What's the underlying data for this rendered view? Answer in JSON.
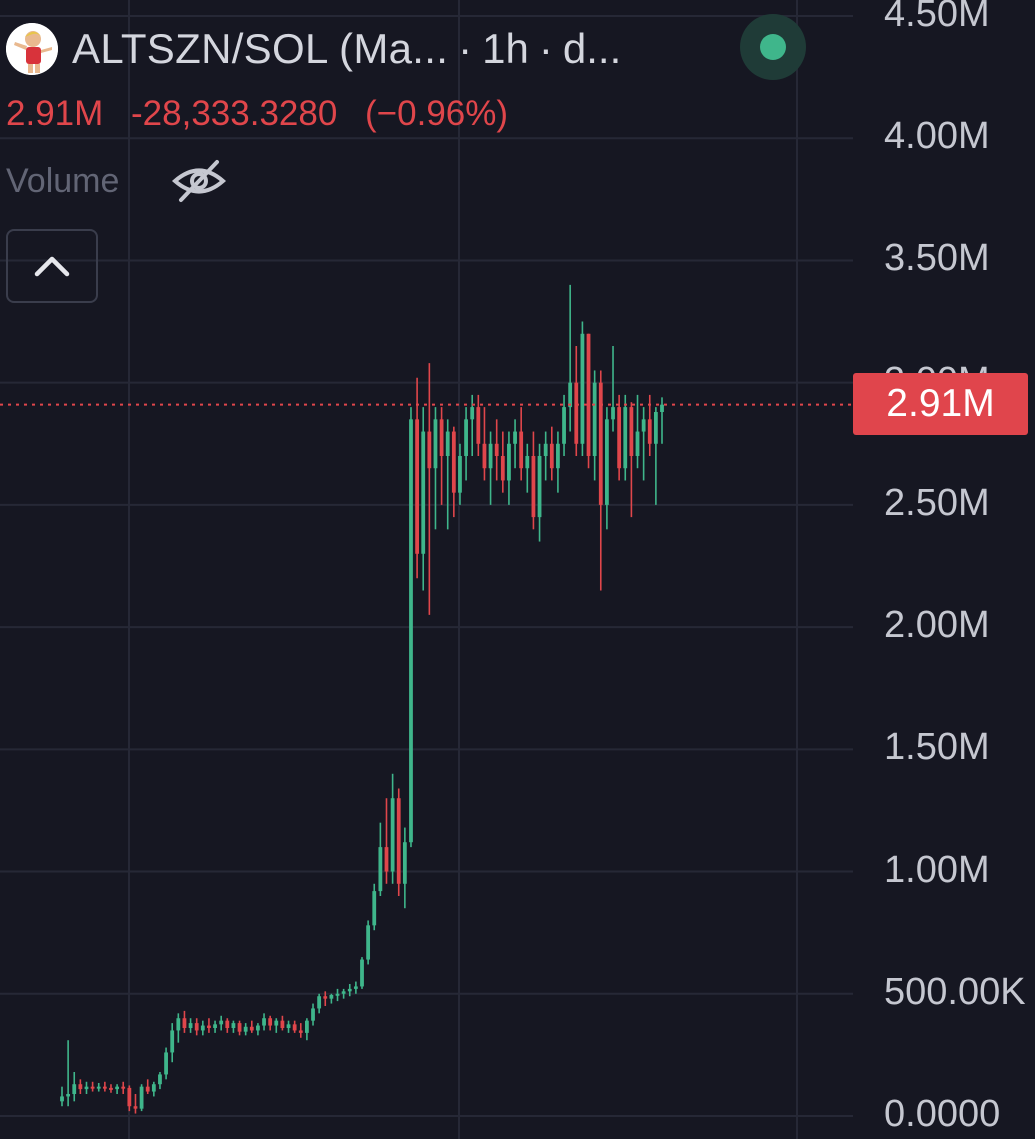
{
  "header": {
    "symbol": "ALTSZN/SOL (Ma...",
    "separator": "·",
    "interval": "1h",
    "exchange": "d...",
    "avatar_icon": "trader-avatar-icon",
    "status_icon": "market-open-dot-icon"
  },
  "price": {
    "last": "2.91M",
    "change": "-28,333.3280",
    "change_percent": "(−0.96%)"
  },
  "volume": {
    "label": "Volume",
    "hidden_icon": "eye-off-icon"
  },
  "collapse": {
    "icon": "chevron-up-icon"
  },
  "colors": {
    "background": "#161722",
    "grid": "#262836",
    "up": "#3fb68b",
    "down": "#e0464b",
    "axis_text": "#c5c7d0",
    "badge": "#e0454c"
  },
  "chart_data": {
    "type": "candlestick",
    "title": "ALTSZN/SOL",
    "interval": "1h",
    "last_price": 2910000,
    "last_price_label": "2.91M",
    "y_axis": {
      "side": "right",
      "ticks": [
        {
          "value": 4500000,
          "label": "4.50M"
        },
        {
          "value": 4000000,
          "label": "4.00M"
        },
        {
          "value": 3500000,
          "label": "3.50M"
        },
        {
          "value": 3000000,
          "label": "3.00M"
        },
        {
          "value": 2500000,
          "label": "2.50M"
        },
        {
          "value": 2000000,
          "label": "2.00M"
        },
        {
          "value": 1500000,
          "label": "1.50M"
        },
        {
          "value": 1000000,
          "label": "1.00M"
        },
        {
          "value": 500000,
          "label": "500.00K"
        },
        {
          "value": 0,
          "label": "0.0000"
        }
      ]
    },
    "ylim": [
      0,
      4500000
    ],
    "grid": true,
    "candles_ohlc": [
      [
        60000,
        120000,
        40000,
        80000
      ],
      [
        80000,
        310000,
        40000,
        90000
      ],
      [
        90000,
        180000,
        60000,
        130000
      ],
      [
        130000,
        150000,
        90000,
        110000
      ],
      [
        110000,
        140000,
        90000,
        120000
      ],
      [
        120000,
        140000,
        100000,
        115000
      ],
      [
        115000,
        135000,
        100000,
        120000
      ],
      [
        120000,
        140000,
        100000,
        115000
      ],
      [
        115000,
        130000,
        95000,
        110000
      ],
      [
        110000,
        130000,
        90000,
        120000
      ],
      [
        120000,
        140000,
        90000,
        115000
      ],
      [
        115000,
        125000,
        20000,
        40000
      ],
      [
        40000,
        90000,
        10000,
        30000
      ],
      [
        30000,
        130000,
        20000,
        120000
      ],
      [
        120000,
        150000,
        90000,
        100000
      ],
      [
        100000,
        140000,
        80000,
        130000
      ],
      [
        130000,
        180000,
        110000,
        170000
      ],
      [
        170000,
        280000,
        150000,
        260000
      ],
      [
        260000,
        380000,
        220000,
        350000
      ],
      [
        350000,
        420000,
        300000,
        400000
      ],
      [
        400000,
        430000,
        340000,
        360000
      ],
      [
        360000,
        400000,
        340000,
        380000
      ],
      [
        380000,
        400000,
        330000,
        350000
      ],
      [
        350000,
        390000,
        330000,
        370000
      ],
      [
        370000,
        400000,
        340000,
        360000
      ],
      [
        360000,
        390000,
        340000,
        375000
      ],
      [
        375000,
        410000,
        350000,
        390000
      ],
      [
        390000,
        400000,
        340000,
        360000
      ],
      [
        360000,
        390000,
        340000,
        380000
      ],
      [
        380000,
        390000,
        330000,
        345000
      ],
      [
        345000,
        380000,
        330000,
        365000
      ],
      [
        365000,
        390000,
        340000,
        350000
      ],
      [
        350000,
        380000,
        330000,
        370000
      ],
      [
        370000,
        420000,
        350000,
        400000
      ],
      [
        400000,
        410000,
        350000,
        370000
      ],
      [
        370000,
        400000,
        340000,
        390000
      ],
      [
        390000,
        410000,
        350000,
        360000
      ],
      [
        360000,
        390000,
        340000,
        375000
      ],
      [
        375000,
        390000,
        340000,
        350000
      ],
      [
        350000,
        380000,
        320000,
        340000
      ],
      [
        340000,
        400000,
        310000,
        390000
      ],
      [
        390000,
        460000,
        370000,
        440000
      ],
      [
        440000,
        500000,
        420000,
        490000
      ],
      [
        490000,
        510000,
        450000,
        480000
      ],
      [
        480000,
        500000,
        460000,
        495000
      ],
      [
        495000,
        520000,
        470000,
        500000
      ],
      [
        500000,
        520000,
        480000,
        510000
      ],
      [
        510000,
        540000,
        490000,
        520000
      ],
      [
        520000,
        550000,
        500000,
        530000
      ],
      [
        530000,
        650000,
        520000,
        640000
      ],
      [
        640000,
        800000,
        620000,
        780000
      ],
      [
        780000,
        950000,
        760000,
        920000
      ],
      [
        920000,
        1200000,
        900000,
        1100000
      ],
      [
        1100000,
        1300000,
        950000,
        1000000
      ],
      [
        1000000,
        1400000,
        950000,
        1300000
      ],
      [
        1300000,
        1340000,
        900000,
        950000
      ],
      [
        950000,
        1180000,
        850000,
        1120000
      ],
      [
        1120000,
        2900000,
        1100000,
        2850000
      ],
      [
        2850000,
        3020000,
        2200000,
        2300000
      ],
      [
        2300000,
        2900000,
        2150000,
        2800000
      ],
      [
        2800000,
        3080000,
        2050000,
        2650000
      ],
      [
        2650000,
        2900000,
        2400000,
        2850000
      ],
      [
        2850000,
        2900000,
        2500000,
        2700000
      ],
      [
        2700000,
        2850000,
        2400000,
        2800000
      ],
      [
        2800000,
        2820000,
        2450000,
        2550000
      ],
      [
        2550000,
        2750000,
        2500000,
        2700000
      ],
      [
        2700000,
        2900000,
        2600000,
        2850000
      ],
      [
        2850000,
        2950000,
        2700000,
        2900000
      ],
      [
        2900000,
        2950000,
        2700000,
        2750000
      ],
      [
        2750000,
        2900000,
        2600000,
        2650000
      ],
      [
        2650000,
        2800000,
        2500000,
        2750000
      ],
      [
        2750000,
        2850000,
        2600000,
        2700000
      ],
      [
        2700000,
        2800000,
        2550000,
        2600000
      ],
      [
        2600000,
        2800000,
        2500000,
        2750000
      ],
      [
        2750000,
        2850000,
        2650000,
        2800000
      ],
      [
        2800000,
        2900000,
        2600000,
        2650000
      ],
      [
        2650000,
        2750000,
        2550000,
        2700000
      ],
      [
        2700000,
        2800000,
        2400000,
        2450000
      ],
      [
        2450000,
        2750000,
        2350000,
        2700000
      ],
      [
        2700000,
        2800000,
        2600000,
        2750000
      ],
      [
        2750000,
        2820000,
        2600000,
        2650000
      ],
      [
        2650000,
        2800000,
        2550000,
        2750000
      ],
      [
        2750000,
        2950000,
        2700000,
        2900000
      ],
      [
        2900000,
        3400000,
        2800000,
        3000000
      ],
      [
        3000000,
        3150000,
        2700000,
        2750000
      ],
      [
        2750000,
        3250000,
        2700000,
        3200000
      ],
      [
        3200000,
        3200000,
        2650000,
        2700000
      ],
      [
        2700000,
        3050000,
        2600000,
        3000000
      ],
      [
        3000000,
        3050000,
        2150000,
        2500000
      ],
      [
        2500000,
        2900000,
        2400000,
        2850000
      ],
      [
        2850000,
        3150000,
        2800000,
        2900000
      ],
      [
        2900000,
        2950000,
        2600000,
        2650000
      ],
      [
        2650000,
        2950000,
        2600000,
        2900000
      ],
      [
        2900000,
        2920000,
        2450000,
        2700000
      ],
      [
        2700000,
        2950000,
        2650000,
        2800000
      ],
      [
        2800000,
        2900000,
        2600000,
        2850000
      ],
      [
        2850000,
        2950000,
        2700000,
        2750000
      ],
      [
        2750000,
        2900000,
        2500000,
        2880000
      ],
      [
        2880000,
        2940000,
        2750000,
        2910000
      ]
    ]
  }
}
